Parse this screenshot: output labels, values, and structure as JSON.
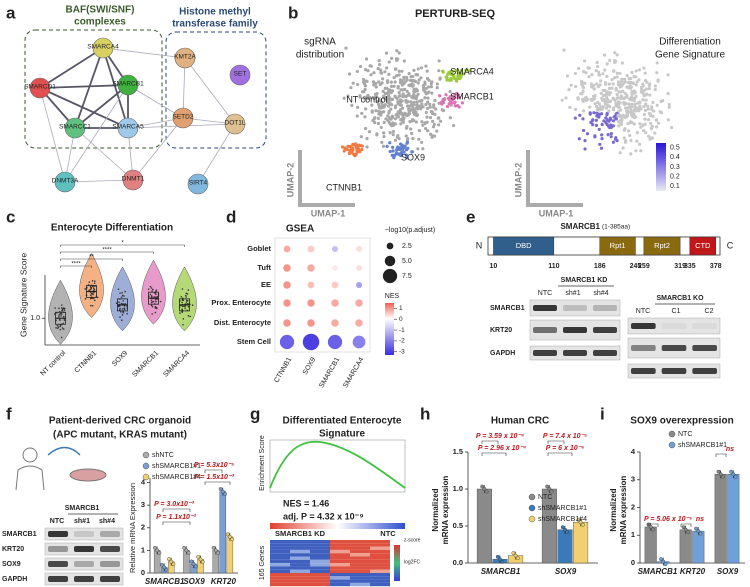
{
  "a": {
    "letter": "a",
    "group_baf": [
      "BAF(SWI/SNF)",
      "complexes"
    ],
    "group_histone": [
      "Histone methyl",
      "transferase family"
    ],
    "nodes": [
      "SMARCA4",
      "SMARCD1",
      "SMARCB1",
      "SMARCC1",
      "SMARCA5",
      "KMT2A",
      "SET",
      "SETD2",
      "DOT1L",
      "DNMT3A",
      "DNMT1",
      "SIRT4"
    ]
  },
  "b": {
    "letter": "b",
    "title": "PERTURB-SEQ",
    "left_title": [
      "sgRNA",
      "distribution"
    ],
    "clusters": [
      "NT control",
      "SMARCA4",
      "SMARCB1",
      "CTNNB1",
      "SOX9"
    ],
    "axis_y": "UMAP-2",
    "axis_x": "UMAP-1",
    "right_title": [
      "Differentiation",
      "Gene Signature"
    ],
    "colorbar_ticks": [
      0.5,
      0.4,
      0.3,
      0.2,
      0.1
    ]
  },
  "c": {
    "letter": "c",
    "title": "Enterocyte Differentiation",
    "y_label": "Gene Signature Score",
    "ylim": [
      0.8,
      1.6
    ],
    "yticks": [
      {
        "value": 1,
        "label": "1.0"
      }
    ],
    "categories": [
      "NT control",
      "CTNNB1",
      "SOX9",
      "SMARCB1",
      "SMARCA4"
    ],
    "colors": [
      "#9a9a9a",
      "#f0975a",
      "#7d93c8",
      "#e07ab8",
      "#9ccc4a"
    ],
    "medians": [
      1.0,
      1.2,
      1.1,
      1.15,
      1.1
    ],
    "significance": [
      "****",
      "**",
      "****",
      "*"
    ]
  },
  "d": {
    "letter": "d",
    "title": "GSEA",
    "rows": [
      "Goblet",
      "Tuft",
      "EE",
      "Prox. Enterocyte",
      "Dist. Enterocyte",
      "Stem Cell"
    ],
    "columns": [
      "CTNNB1",
      "SOX9",
      "SMARCB1",
      "SMARCA4"
    ],
    "nes": [
      [
        0.8,
        0.5,
        -1,
        0.3
      ],
      [
        1,
        0.8,
        0.2,
        0.3
      ],
      [
        1,
        0.6,
        0.5,
        -1.5
      ],
      [
        1,
        1,
        0.8,
        0.8
      ],
      [
        1,
        1,
        0.8,
        0.8
      ],
      [
        -2.5,
        -3,
        -2.5,
        -2
      ]
    ],
    "neglog10p": [
      [
        2.5,
        2.5,
        2,
        2
      ],
      [
        3,
        3,
        2,
        2
      ],
      [
        3,
        2.5,
        2.5,
        2
      ],
      [
        3,
        3,
        3,
        3
      ],
      [
        3,
        3,
        3,
        3
      ],
      [
        7.5,
        9,
        7.5,
        6.5
      ]
    ],
    "size_label": "−log10(p.adjust)",
    "size_ticks": [
      2.5,
      {
        "value": 5,
        "label": "5.0"
      },
      7.5
    ],
    "color_label": "NES",
    "nes_lim": [
      -3.3,
      1.5
    ],
    "nes_ticks": [
      1,
      0,
      -1,
      -2,
      -3
    ]
  },
  "e": {
    "letter": "e",
    "title": "SMARCB1",
    "title_range": "(1-385aa)",
    "n_term": "N",
    "c_term": "C",
    "xlim": [
      1,
      385
    ],
    "domains": [
      {
        "name": "DBD",
        "start": 10,
        "end": 110,
        "color": "#2f5f8a"
      },
      {
        "name": "Rpt1",
        "start": 186,
        "end": 245,
        "color": "#8a6a10"
      },
      {
        "name": "Rpt2",
        "start": 259,
        "end": 319,
        "color": "#8a6a10"
      },
      {
        "name": "CTD",
        "start": 335,
        "end": 378,
        "color": "#c0171b"
      }
    ],
    "kd": {
      "title": "SMARCB1 KD",
      "lanes": [
        "NTC",
        "sh#1",
        "sh#4"
      ]
    },
    "ko": {
      "title": "SMARCB1 KO",
      "lanes": [
        "NTC",
        "C1",
        "C2"
      ]
    },
    "blots": [
      "SMARCB1",
      "KRT20",
      "GAPDH"
    ]
  },
  "f": {
    "letter": "f",
    "title": "Patient-derived CRC organoid",
    "subtitle": "(APC mutant, KRAS mutant)",
    "blot_header": "SMARCB1",
    "lanes": [
      "NTC",
      "sh#1",
      "sh#4"
    ],
    "blots": [
      "SMARCB1",
      "KRT20",
      "SOX9",
      "GAPDH"
    ],
    "chart": {
      "y_label": "Relative mRNA Expression",
      "ylim": [
        0,
        4.2
      ],
      "yticks": [
        0,
        1,
        2,
        3,
        4
      ],
      "categories": [
        "SMARCB1",
        "SOX9",
        "KRT20"
      ],
      "series": [
        {
          "name": "shNTC",
          "color": "#aaaaaa",
          "values": [
            1,
            1,
            1
          ]
        },
        {
          "name": "shSMARCB1#1",
          "color": "#7b9fd4",
          "values": [
            0.25,
            0.4,
            3.6
          ]
        },
        {
          "name": "shSMARCB1#4",
          "color": "#f0d070",
          "values": [
            0.5,
            0.6,
            1.6
          ]
        }
      ],
      "p_values": [
        "P = 3.0x10⁻³",
        "P = 1.1x10⁻²",
        "P = 5.3x10⁻⁵",
        "P = 1.5x10⁻³"
      ]
    }
  },
  "g": {
    "letter": "g",
    "title": [
      "Differentiated Enterocyte",
      "Signature"
    ],
    "y_label": "Enrichment Score",
    "nes": "NES = 1.46",
    "padj": "adj. P = 4.32 x 10⁻⁹",
    "groups": [
      "SMARCB1 KD",
      "NTC"
    ],
    "genes": "165 Genes",
    "legend": [
      "z-score",
      "log2FC"
    ]
  },
  "h": {
    "letter": "h",
    "title": "Human CRC",
    "chart": {
      "y_label": [
        "Normalized",
        "mRNA expression"
      ],
      "ylim": [
        0,
        1.5
      ],
      "yticks": [
        {
          "value": 0,
          "label": "0.0"
        },
        {
          "value": 0.5,
          "label": "0.5"
        },
        {
          "value": 1,
          "label": "1.0"
        },
        {
          "value": 1.5,
          "label": "1.5"
        }
      ],
      "categories": [
        "SMARCB1",
        "SOX9"
      ],
      "series": [
        {
          "name": "NTC",
          "color": "#8a8a8a",
          "values": [
            1,
            1
          ]
        },
        {
          "name": "shSMARCB1#1",
          "color": "#3a7ab8",
          "values": [
            0.05,
            0.45
          ]
        },
        {
          "name": "shSMARCB1#4",
          "color": "#f0d070",
          "values": [
            0.1,
            0.55
          ]
        }
      ],
      "p_values": [
        "P = 3.59 x 10⁻⁴",
        "P = 2.96 x 10⁻⁴",
        "P = 7.4 x 10⁻⁵",
        "P = 6 x 10⁻⁶"
      ]
    }
  },
  "i": {
    "letter": "i",
    "title": "SOX9 overexpression",
    "chart": {
      "y_label": [
        "Normalized",
        "mRNA expression"
      ],
      "ylim": [
        0,
        4
      ],
      "yticks": [
        0,
        1,
        2,
        3,
        4
      ],
      "categories": [
        "SMARCB1",
        "KRT20",
        "SOX9"
      ],
      "series": [
        {
          "name": "NTC",
          "color": "#8a8a8a",
          "values": [
            1.3,
            1.2,
            3.2
          ]
        },
        {
          "name": "shSMARCB1#1",
          "color": "#6fa0d8",
          "values": [
            0.05,
            1.15,
            3.2
          ]
        }
      ],
      "p_values": [
        "P = 5.06 x 10⁻⁵",
        "ns",
        "ns"
      ]
    }
  }
}
